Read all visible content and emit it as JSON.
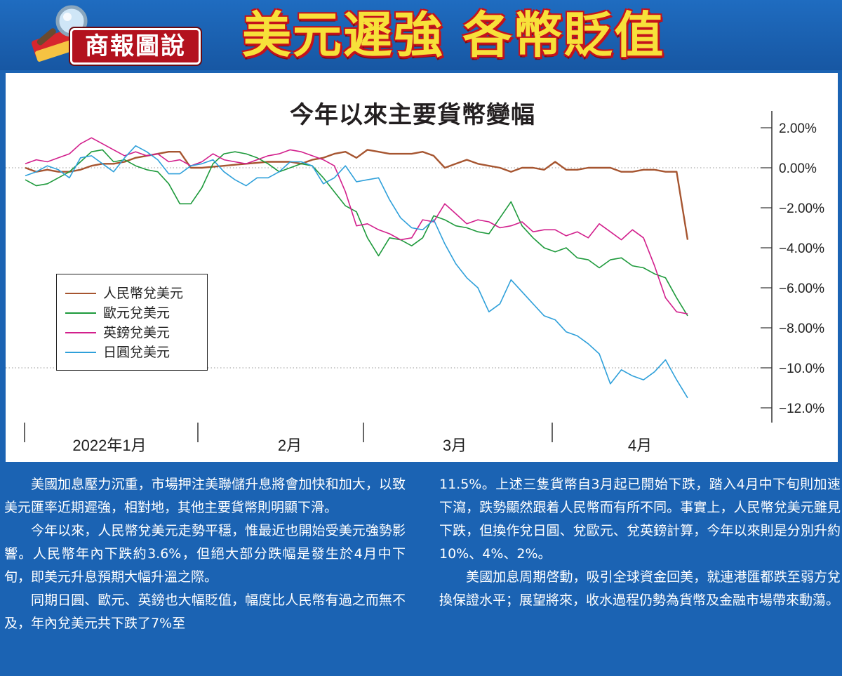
{
  "header": {
    "brand": "商報圖說",
    "headline": "美元遲強 各幣貶值"
  },
  "chart_data": {
    "type": "line",
    "title": "今年以來主要貨幣變幅",
    "x_labels": [
      "2022年1月",
      "2月",
      "3月",
      "4月"
    ],
    "x_index_range": [
      0,
      60
    ],
    "y_ticks": [
      "2.00%",
      "0.00%",
      "−2.00%",
      "−4.00%",
      "−6.00%",
      "−8.00%",
      "−10.0%",
      "−12.0%"
    ],
    "y_tick_values": [
      2,
      0,
      -2,
      -4,
      -6,
      -8,
      -10,
      -12
    ],
    "ylim": [
      -12,
      2
    ],
    "grid": "dotted lines at 0% and -10%",
    "legend_position": "left",
    "series": [
      {
        "name": "人民幣兌美元",
        "color": "#a65530",
        "values": [
          0,
          -0.2,
          -0.1,
          -0.2,
          -0.2,
          -0.1,
          0.1,
          0.2,
          0.2,
          0.3,
          0.5,
          0.6,
          0.7,
          0.8,
          0.8,
          0,
          0,
          0.05,
          0.1,
          0.15,
          0.2,
          0.25,
          0.3,
          0.3,
          0.3,
          0.2,
          0.4,
          0.5,
          0.7,
          0.8,
          0.5,
          0.9,
          0.8,
          0.7,
          0.7,
          0.7,
          0.8,
          0.6,
          0,
          0.2,
          0.4,
          0.2,
          0.1,
          0,
          -0.2,
          0,
          0,
          -0.1,
          0.3,
          -0.1,
          -0.1,
          0,
          0,
          0,
          -0.2,
          -0.2,
          -0.1,
          -0.1,
          -0.2,
          -0.2,
          -3.6
        ]
      },
      {
        "name": "歐元兌美元",
        "color": "#1e9a3c",
        "values": [
          -0.6,
          -0.9,
          -0.8,
          -0.5,
          -0.2,
          0.3,
          0.8,
          0.9,
          0.3,
          0.4,
          0.1,
          -0.1,
          -0.2,
          -0.8,
          -1.8,
          -1.8,
          -1.0,
          0.2,
          0.7,
          0.8,
          0.7,
          0.5,
          0.2,
          -0.2,
          0,
          0.2,
          0.1,
          -0.5,
          -1.2,
          -1.9,
          -2.2,
          -3.5,
          -4.4,
          -3.5,
          -3.6,
          -3.9,
          -3.5,
          -2.4,
          -2.6,
          -2.9,
          -3.0,
          -3.2,
          -3.3,
          -2.5,
          -1.7,
          -2.9,
          -3.5,
          -4.0,
          -4.2,
          -4.0,
          -4.5,
          -4.6,
          -5.0,
          -4.6,
          -4.5,
          -4.9,
          -5.0,
          -5.3,
          -5.5,
          -6.5,
          -7.4
        ]
      },
      {
        "name": "英鎊兌美元",
        "color": "#d21f8c",
        "values": [
          0.2,
          0.4,
          0.3,
          0.5,
          0.7,
          1.2,
          1.5,
          1.2,
          0.9,
          0.6,
          0.8,
          0.6,
          0.7,
          0.3,
          0.4,
          0.1,
          0.3,
          0.7,
          0.4,
          0.3,
          0.2,
          0.4,
          0.6,
          0.7,
          0.9,
          0.8,
          0.6,
          0.4,
          0.1,
          -1.2,
          -2.9,
          -2.8,
          -3.1,
          -3.3,
          -3.6,
          -3.5,
          -2.6,
          -2.7,
          -1.8,
          -2.3,
          -2.8,
          -2.6,
          -2.7,
          -3.0,
          -2.9,
          -2.7,
          -3.2,
          -3.1,
          -3.1,
          -3.4,
          -3.2,
          -3.5,
          -2.8,
          -3.2,
          -3.6,
          -3.1,
          -3.5,
          -4.9,
          -6.5,
          -7.2,
          -7.3
        ]
      },
      {
        "name": "日圓兌美元",
        "color": "#2fa0da",
        "values": [
          -0.4,
          -0.2,
          0.1,
          -0.1,
          -0.5,
          0.5,
          0.6,
          0.2,
          -0.2,
          0.5,
          1.1,
          0.8,
          0.4,
          -0.3,
          -0.3,
          0.1,
          0.2,
          0.4,
          -0.2,
          -0.6,
          -0.9,
          -0.5,
          -0.5,
          -0.2,
          0.3,
          0.3,
          0.1,
          -0.8,
          -0.5,
          0.1,
          -0.7,
          -0.6,
          -0.5,
          -1.6,
          -2.5,
          -3.0,
          -3.1,
          -2.6,
          -3.8,
          -4.8,
          -5.5,
          -6.0,
          -7.2,
          -6.8,
          -5.6,
          -6.2,
          -6.8,
          -7.4,
          -7.6,
          -8.2,
          -8.4,
          -8.8,
          -9.3,
          -10.8,
          -10.1,
          -10.4,
          -10.6,
          -10.2,
          -9.6,
          -10.6,
          -11.5
        ]
      }
    ]
  },
  "body": {
    "left_paragraphs": [
      "美國加息壓力沉重，市場押注美聯儲升息將會加快和加大，以致美元匯率近期遲強，相對地，其他主要貨幣則明顯下滑。",
      "今年以來，人民幣兌美元走勢平穩，惟最近也開始受美元強勢影響。人民幣年內下跌約3.6%，但絕大部分跌幅是發生於4月中下旬，即美元升息預期大幅升溫之際。",
      "同期日圓、歐元、英鎊也大幅貶值，幅度比人民幣有過之而無不及，年內兌美元共下跌了7%至"
    ],
    "right_paragraphs": [
      "11.5%。上述三隻貨幣自3月起已開始下跌，踏入4月中下旬則加速下瀉，跌勢顯然跟着人民幣而有所不同。事實上，人民幣兌美元雖見下跌，但換作兌日圓、兌歐元、兌英鎊計算，今年以來則是分別升約10%、4%、2%。",
      "美國加息周期啓動，吸引全球資金回美，就連港匯都跌至弱方兌換保證水平；展望將來，收水過程仍勢為貨幣及金融市場帶來動蕩。"
    ]
  }
}
